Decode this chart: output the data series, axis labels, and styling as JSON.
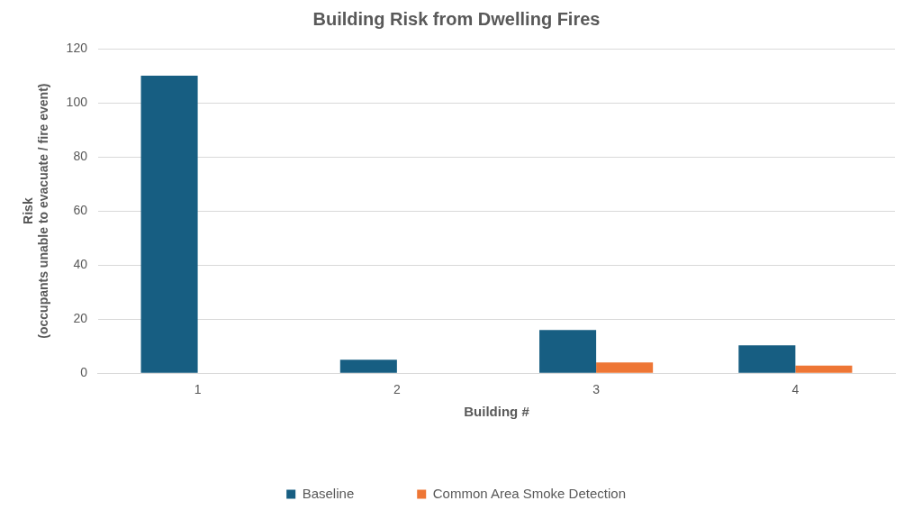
{
  "chart_data": {
    "type": "bar",
    "title": "Building Risk from Dwelling Fires",
    "xlabel": "Building #",
    "ylabel": "Risk\n(occupants unable to evacuate / fire event)",
    "categories": [
      "1",
      "2",
      "3",
      "4"
    ],
    "series": [
      {
        "name": "Baseline",
        "color": "#175e82",
        "values": [
          110,
          5,
          16,
          10.3
        ]
      },
      {
        "name": "Common Area Smoke Detection",
        "color": "#ee7635",
        "values": [
          0,
          0,
          4,
          2.8
        ]
      }
    ],
    "ylim": [
      0,
      120
    ],
    "yticks": [
      0,
      20,
      40,
      60,
      80,
      100,
      120
    ],
    "grid": "y",
    "legend": "bottom"
  }
}
